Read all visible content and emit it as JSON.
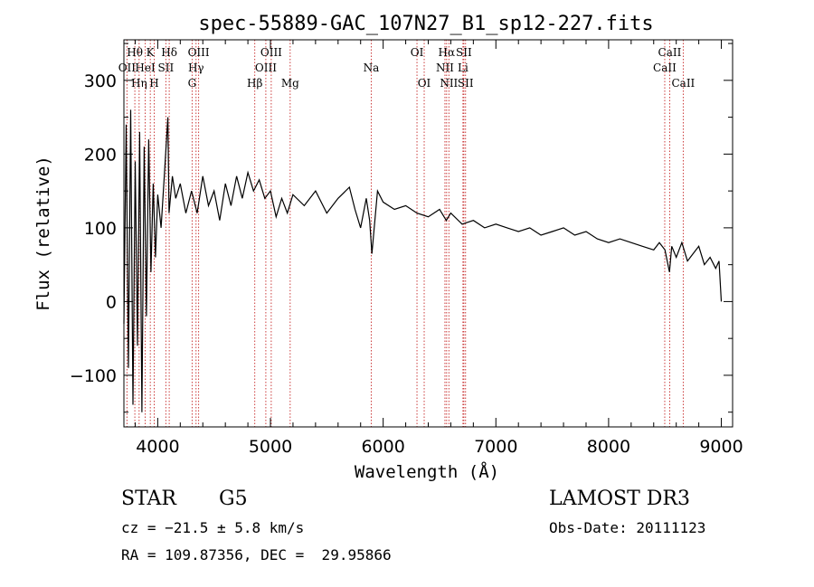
{
  "chart_data": {
    "type": "line",
    "title": "spec-55889-GAC_107N27_B1_sp12-227.fits",
    "xlabel": "Wavelength (Å)",
    "ylabel": "Flux (relative)",
    "xlim": [
      3700,
      9100
    ],
    "ylim": [
      -170,
      355
    ],
    "x_ticks": [
      4000,
      5000,
      6000,
      7000,
      8000,
      9000
    ],
    "x_tick_labels": [
      "4000",
      "5000",
      "6000",
      "7000",
      "8000",
      "9000"
    ],
    "y_ticks": [
      -100,
      0,
      100,
      200,
      300
    ],
    "y_tick_labels": [
      "−100",
      "0",
      "100",
      "200",
      "300"
    ],
    "series": [
      {
        "name": "flux",
        "x": [
          3700,
          3720,
          3740,
          3760,
          3780,
          3800,
          3820,
          3840,
          3860,
          3880,
          3900,
          3920,
          3940,
          3960,
          3980,
          4000,
          4030,
          4060,
          4090,
          4100,
          4130,
          4160,
          4200,
          4250,
          4300,
          4350,
          4400,
          4450,
          4500,
          4550,
          4600,
          4650,
          4700,
          4750,
          4800,
          4850,
          4900,
          4950,
          5000,
          5050,
          5100,
          5150,
          5200,
          5300,
          5400,
          5500,
          5600,
          5700,
          5750,
          5800,
          5850,
          5880,
          5900,
          5950,
          6000,
          6100,
          6200,
          6300,
          6400,
          6500,
          6560,
          6600,
          6700,
          6800,
          6900,
          7000,
          7100,
          7200,
          7300,
          7400,
          7500,
          7600,
          7700,
          7800,
          7900,
          8000,
          8100,
          8200,
          8300,
          8400,
          8450,
          8500,
          8540,
          8560,
          8600,
          8650,
          8700,
          8750,
          8800,
          8850,
          8900,
          8950,
          8980,
          9000
        ],
        "y": [
          -30,
          240,
          -90,
          260,
          -140,
          190,
          -60,
          230,
          -150,
          210,
          -20,
          220,
          40,
          160,
          60,
          145,
          100,
          175,
          250,
          120,
          170,
          140,
          160,
          120,
          150,
          120,
          170,
          130,
          150,
          110,
          160,
          130,
          170,
          140,
          175,
          150,
          165,
          140,
          150,
          115,
          140,
          120,
          145,
          130,
          150,
          120,
          140,
          155,
          125,
          100,
          140,
          110,
          65,
          150,
          135,
          125,
          130,
          120,
          115,
          125,
          110,
          120,
          105,
          110,
          100,
          105,
          100,
          95,
          100,
          90,
          95,
          100,
          90,
          95,
          85,
          80,
          85,
          80,
          75,
          70,
          80,
          70,
          40,
          75,
          60,
          80,
          55,
          65,
          75,
          50,
          60,
          45,
          55,
          0
        ]
      }
    ],
    "line_markers": [
      {
        "name": "Hθ",
        "wavelength": 3797,
        "row": 1
      },
      {
        "name": "OII",
        "wavelength": 3727,
        "row": 2
      },
      {
        "name": "Hη",
        "wavelength": 3835,
        "row": 3
      },
      {
        "name": "K",
        "wavelength": 3934,
        "row": 1
      },
      {
        "name": "HeI",
        "wavelength": 3889,
        "row": 2
      },
      {
        "name": "H",
        "wavelength": 3969,
        "row": 3
      },
      {
        "name": "Hδ",
        "wavelength": 4102,
        "row": 1
      },
      {
        "name": "SII",
        "wavelength": 4072,
        "row": 2
      },
      {
        "name": "OIII",
        "wavelength": 4363,
        "row": 1
      },
      {
        "name": "Hγ",
        "wavelength": 4340,
        "row": 2
      },
      {
        "name": "G",
        "wavelength": 4305,
        "row": 3
      },
      {
        "name": "Hβ",
        "wavelength": 4861,
        "row": 3
      },
      {
        "name": "OIII",
        "wavelength": 5007,
        "row": 1
      },
      {
        "name": "OIII",
        "wavelength": 4959,
        "row": 2
      },
      {
        "name": "Mg",
        "wavelength": 5175,
        "row": 3
      },
      {
        "name": "Na",
        "wavelength": 5894,
        "row": 2
      },
      {
        "name": "OI",
        "wavelength": 6300,
        "row": 1
      },
      {
        "name": "OI",
        "wavelength": 6364,
        "row": 3
      },
      {
        "name": "Hα",
        "wavelength": 6563,
        "row": 1
      },
      {
        "name": "SII",
        "wavelength": 6716,
        "row": 1
      },
      {
        "name": "NII",
        "wavelength": 6548,
        "row": 2
      },
      {
        "name": "Li",
        "wavelength": 6708,
        "row": 2
      },
      {
        "name": "NII",
        "wavelength": 6583,
        "row": 3
      },
      {
        "name": "SII",
        "wavelength": 6731,
        "row": 3
      },
      {
        "name": "CaII",
        "wavelength": 8542,
        "row": 1
      },
      {
        "name": "CaII",
        "wavelength": 8498,
        "row": 2
      },
      {
        "name": "CaII",
        "wavelength": 8662,
        "row": 3
      }
    ]
  },
  "info": {
    "object_class": "STAR",
    "subclass": "G5",
    "survey": "LAMOST DR3",
    "redshift": "cz = −21.5 ± 5.8 km/s",
    "obs_date": "Obs-Date: 20111123",
    "coords": "RA = 109.87356, DEC =  29.95866"
  }
}
